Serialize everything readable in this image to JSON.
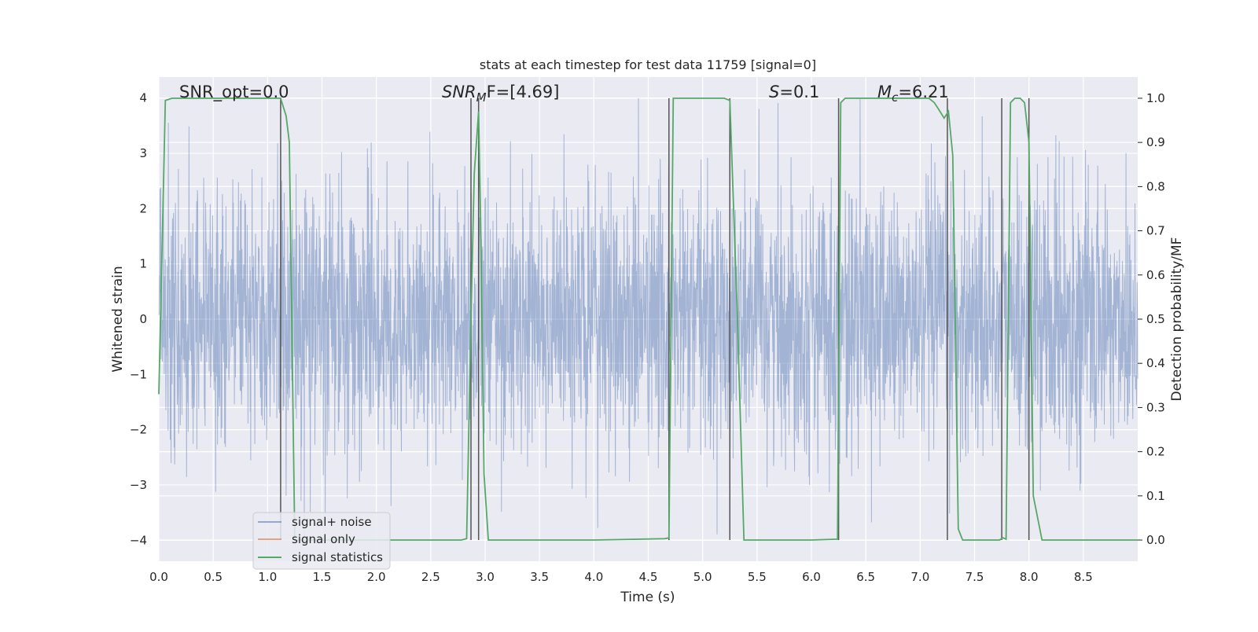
{
  "chart_data": {
    "type": "line",
    "title": "stats at each timestep for test data 11759 [signal=0]",
    "xlabel": "Time (s)",
    "ylabel_left": "Whitened strain",
    "ylabel_right": "Detection probability/MF",
    "xlim": [
      0.0,
      9.0
    ],
    "ylim_left": [
      -4.38,
      4.38
    ],
    "ylim_right": [
      -0.048,
      1.048
    ],
    "xticks": [
      "0.0",
      "0.5",
      "1.0",
      "1.5",
      "2.0",
      "2.5",
      "3.0",
      "3.5",
      "4.0",
      "4.5",
      "5.0",
      "5.5",
      "6.0",
      "6.5",
      "7.0",
      "7.5",
      "8.0",
      "8.5"
    ],
    "yticks_left": [
      "4",
      "3",
      "2",
      "1",
      "0",
      "−1",
      "−2",
      "−3",
      "−4"
    ],
    "yticks_right": [
      "1.0",
      "0.9",
      "0.8",
      "0.7",
      "0.6",
      "0.5",
      "0.4",
      "0.3",
      "0.2",
      "0.1",
      "0.0"
    ],
    "grid": true,
    "legend_position": "lower-left",
    "legend": [
      "signal+ noise",
      "signal only",
      "signal statistics"
    ],
    "annotations": {
      "snr_opt": "SNR_opt=0.0",
      "snr_mf_main": "SNR",
      "snr_mf_sub": "M",
      "snr_mf_rest": "F=[4.69]",
      "s_main": "S",
      "s_rest": "=0.1",
      "mc_main": "M",
      "mc_sub": "c",
      "mc_rest": "=6.21"
    },
    "colors": {
      "signal_noise": "#4c72b0",
      "signal_only": "#dd8452",
      "signal_statistics": "#55a868",
      "vlines": "#555555",
      "background": "#eaeaf2"
    },
    "signal_noise": {
      "description_free": true,
      "amplitude_typical": 1.5,
      "amplitude_peak": 4.0,
      "sample_rate_hz": 2048
    },
    "signal_only": {
      "values": []
    },
    "signal_statistics": {
      "x": [
        0.0,
        0.06,
        0.12,
        0.2,
        0.5,
        1.0,
        1.08,
        1.12,
        1.17,
        1.2,
        1.25,
        1.3,
        2.0,
        2.5,
        2.78,
        2.83,
        2.87,
        2.9,
        2.94,
        2.96,
        2.99,
        3.03,
        3.1,
        4.0,
        4.2,
        4.65,
        4.69,
        4.73,
        4.77,
        5.0,
        5.2,
        5.25,
        5.32,
        5.38,
        5.45,
        6.0,
        6.24,
        6.27,
        6.31,
        6.35,
        6.6,
        7.0,
        7.08,
        7.13,
        7.17,
        7.22,
        7.26,
        7.3,
        7.35,
        7.39,
        7.45,
        7.73,
        7.76,
        7.79,
        7.83,
        7.87,
        7.92,
        7.96,
        8.0,
        8.04,
        8.12,
        8.5,
        9.0
      ],
      "y": [
        0.33,
        0.995,
        1.0,
        1.0,
        1.0,
        1.0,
        1.0,
        1.0,
        0.96,
        0.9,
        0.0,
        0.0,
        0.0,
        0.0,
        0.0,
        0.003,
        0.5,
        0.83,
        0.97,
        0.7,
        0.15,
        0.0,
        0.0,
        0.0,
        0.001,
        0.003,
        0.005,
        1.0,
        1.0,
        1.0,
        1.0,
        0.995,
        0.5,
        0.0,
        0.0,
        0.0,
        0.002,
        0.99,
        1.0,
        1.0,
        1.0,
        1.0,
        1.0,
        0.99,
        0.975,
        0.955,
        0.97,
        0.87,
        0.025,
        0.0,
        0.0,
        0.0,
        0.005,
        0.002,
        0.99,
        1.0,
        1.0,
        0.99,
        0.9,
        0.1,
        0.0,
        0.0,
        0.0
      ]
    },
    "vlines_x": [
      1.12,
      2.87,
      2.94,
      4.69,
      5.25,
      6.25,
      7.25,
      7.75,
      8.0
    ]
  }
}
